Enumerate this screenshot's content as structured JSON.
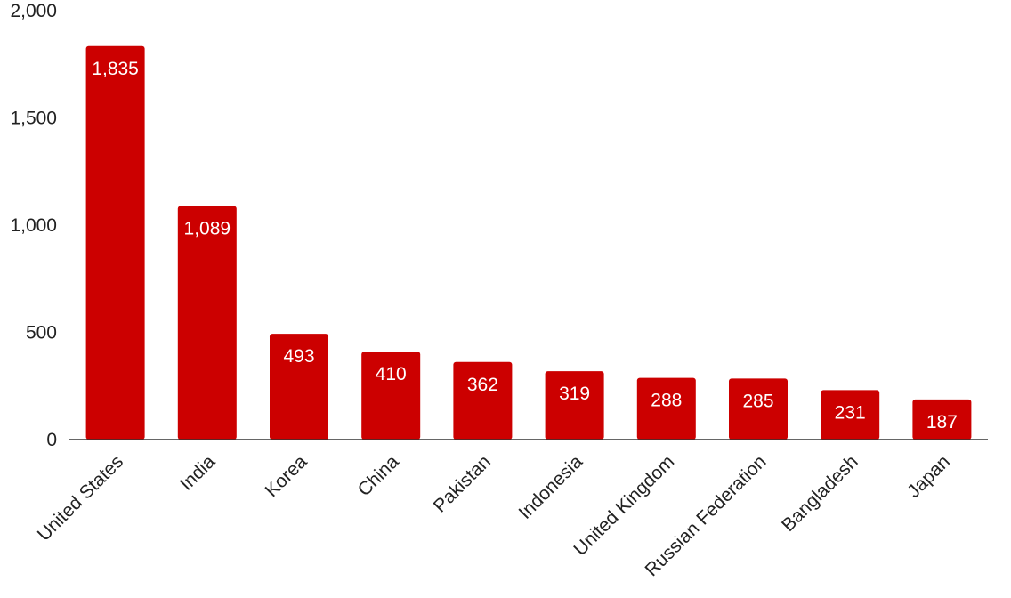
{
  "chart_data": {
    "type": "bar",
    "title": "",
    "xlabel": "",
    "ylabel": "",
    "categories": [
      "United States",
      "India",
      "Korea",
      "China",
      "Pakistan",
      "Indonesia",
      "United Kingdom",
      "Russian Federation",
      "Bangladesh",
      "Japan"
    ],
    "values": [
      1835,
      1089,
      493,
      410,
      362,
      319,
      288,
      285,
      231,
      187
    ],
    "value_labels": [
      "1,835",
      "1,089",
      "493",
      "410",
      "362",
      "319",
      "288",
      "285",
      "231",
      "187"
    ],
    "ylim": [
      0,
      2000
    ],
    "y_ticks": [
      0,
      500,
      1000,
      1500,
      2000
    ],
    "y_tick_labels": [
      "0",
      "500",
      "1,000",
      "1,500",
      "2,000"
    ],
    "grid": false,
    "legend": "none",
    "bar_color": "#cc0000",
    "axis_color": "#333333",
    "text_color": "#222222",
    "data_label_color": "#ffffff"
  }
}
